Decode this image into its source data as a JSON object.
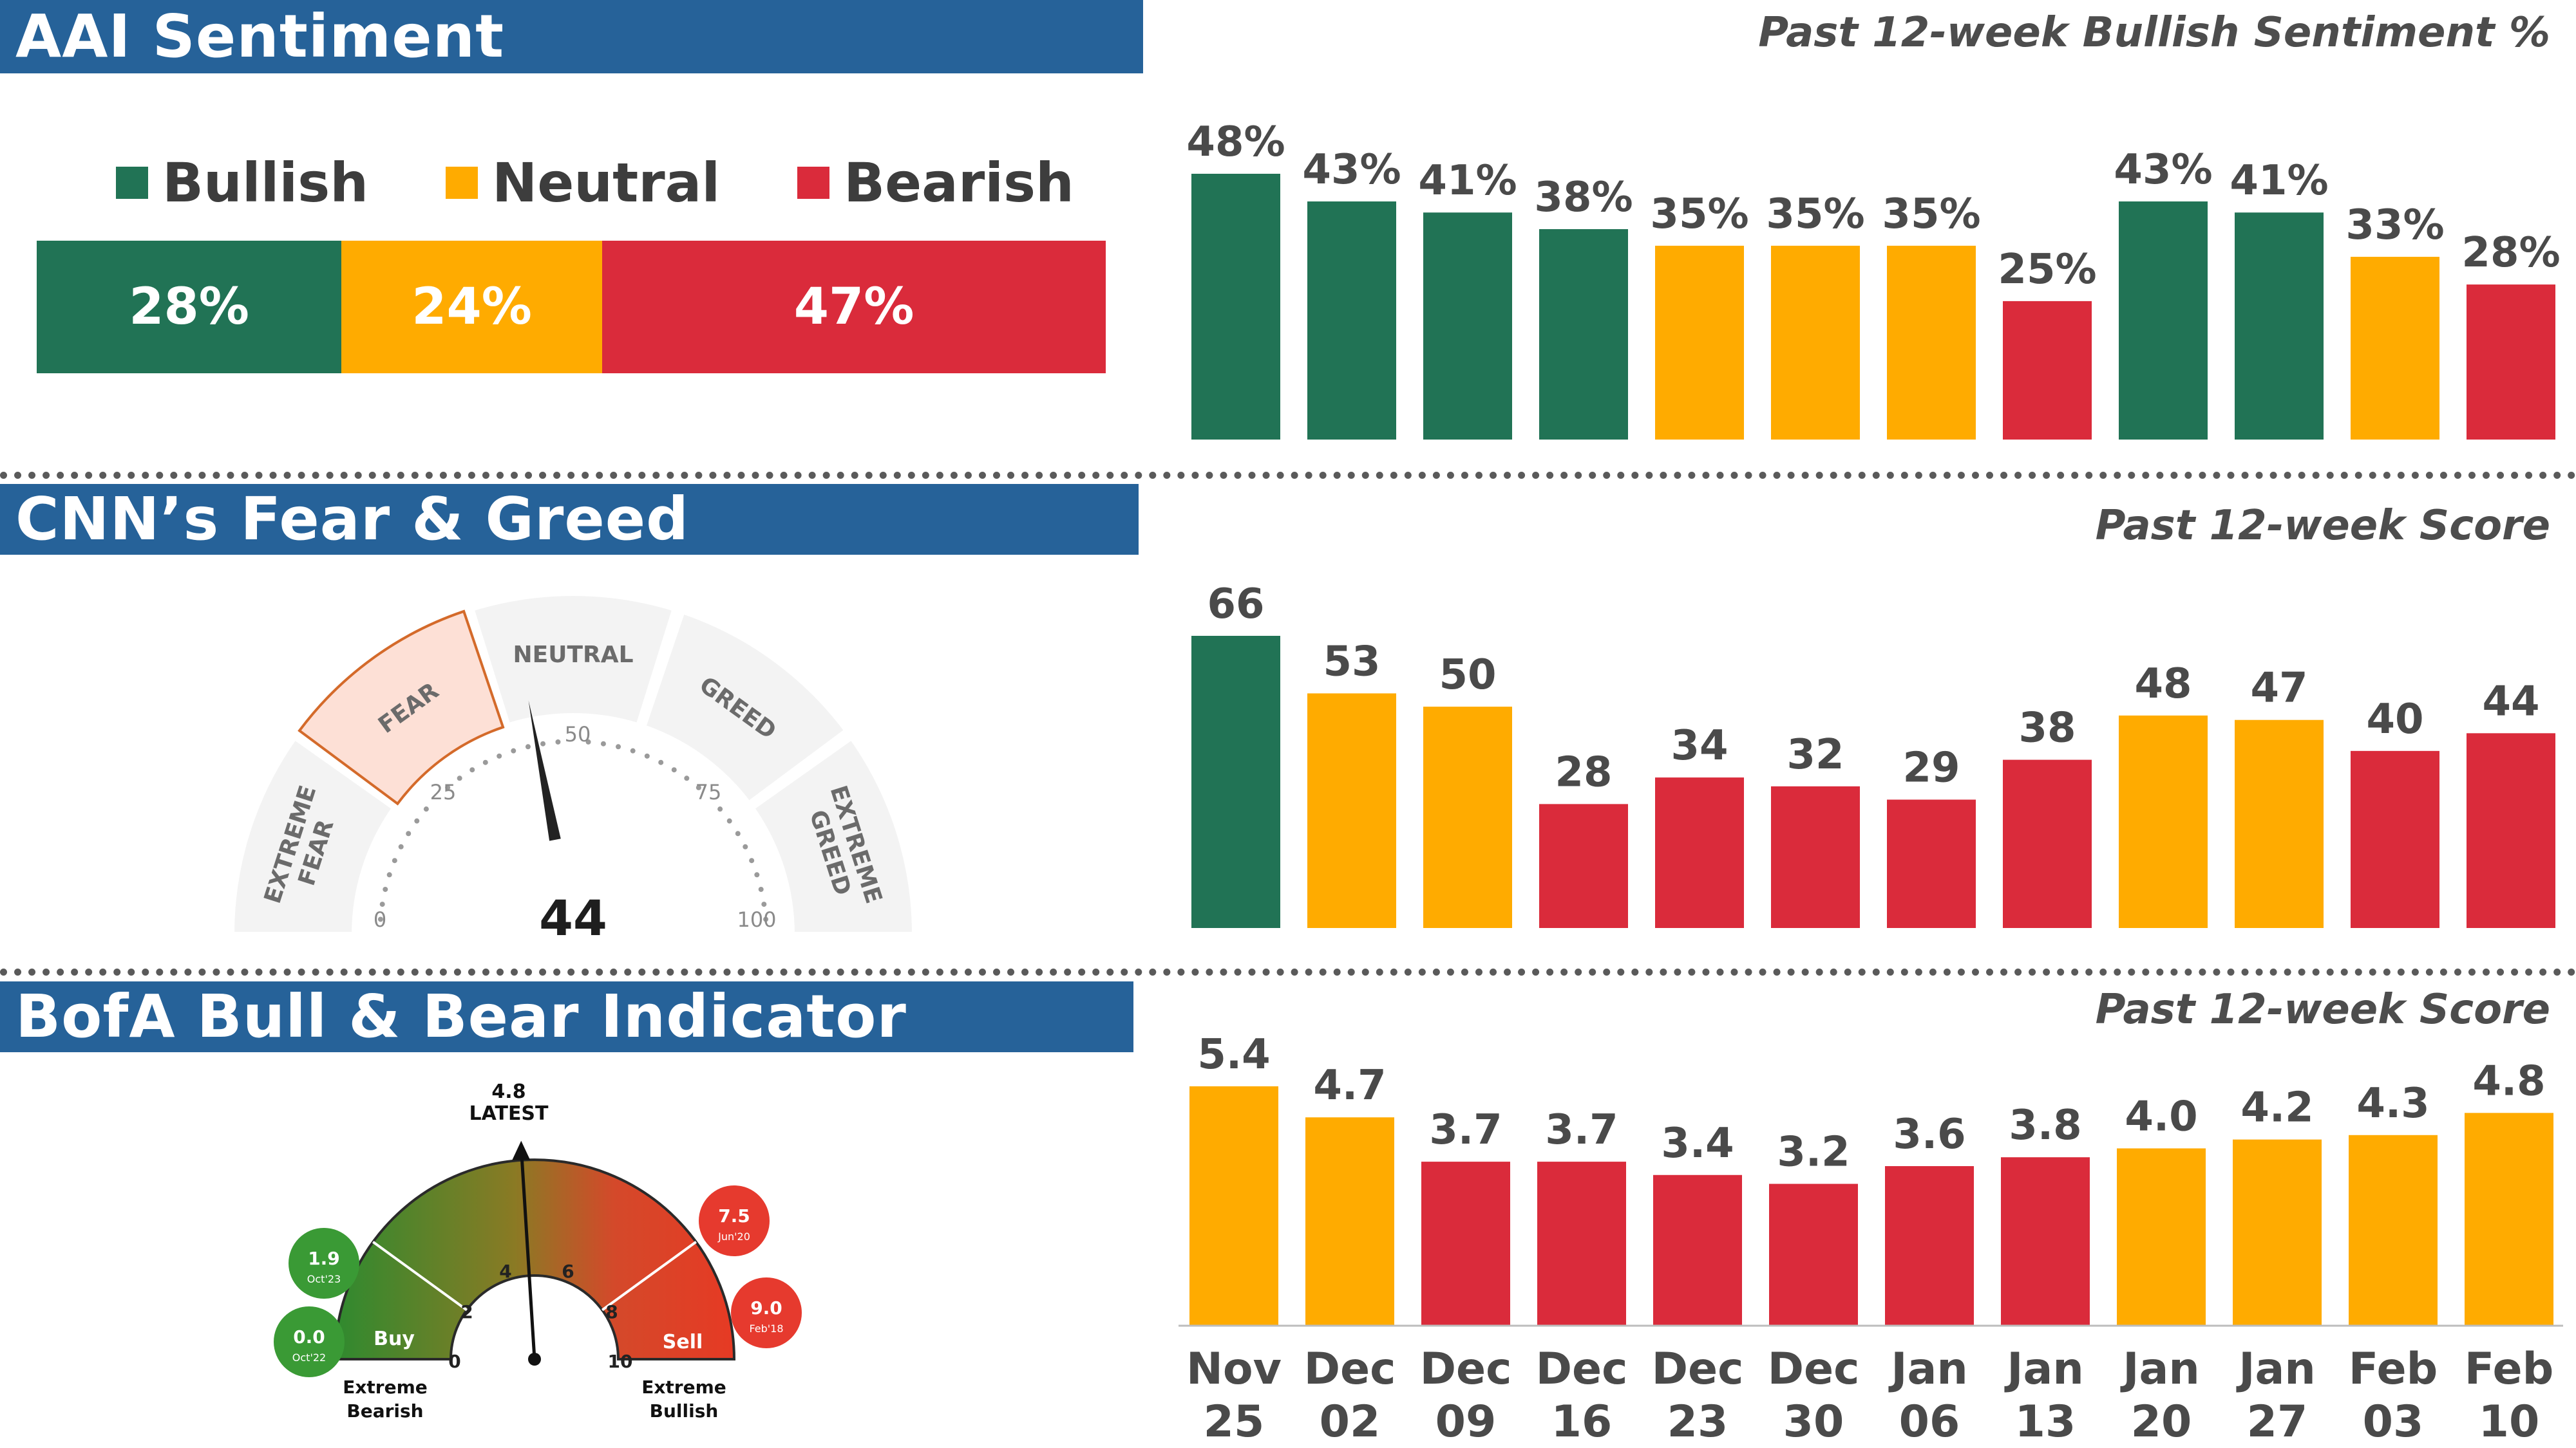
{
  "aai": {
    "title": "AAI Sentiment",
    "legend": [
      {
        "label": "Bullish",
        "color": "#217355"
      },
      {
        "label": "Neutral",
        "color": "#ffab00"
      },
      {
        "label": "Bearish",
        "color": "#da2b3b"
      }
    ],
    "breakdown": [
      {
        "label": "28%",
        "value": 28.5,
        "color": "#217355"
      },
      {
        "label": "24%",
        "value": 24.4,
        "color": "#ffab00"
      },
      {
        "label": "47%",
        "value": 47.1,
        "color": "#da2b3b"
      }
    ]
  },
  "cnn": {
    "title": "CNN’s Fear & Greed",
    "gauge": {
      "score": "44",
      "zones": [
        "EXTREME FEAR",
        "FEAR",
        "NEUTRAL",
        "GREED",
        "EXTREME GREED"
      ],
      "ticks": [
        "0",
        "25",
        "50",
        "75",
        "100"
      ],
      "active_zone": "FEAR"
    }
  },
  "bofa": {
    "title": "BofA Bull & Bear Indicator",
    "gauge": {
      "latest_value": "4.8",
      "latest_label": "LATEST",
      "ticks": [
        "0",
        "2",
        "4",
        "6",
        "8",
        "10"
      ],
      "buy_label": "Buy",
      "sell_label": "Sell",
      "left_end": [
        "Extreme",
        "Bearish"
      ],
      "right_end": [
        "Extreme",
        "Bullish"
      ],
      "bubbles": [
        {
          "value": "1.9",
          "date": "Oct'23",
          "color": "#3a9a35"
        },
        {
          "value": "0.0",
          "date": "Oct'22",
          "color": "#3a9a35"
        },
        {
          "value": "7.5",
          "date": "Jun'20",
          "color": "#e63a2e"
        },
        {
          "value": "9.0",
          "date": "Feb'18",
          "color": "#e63a2e"
        }
      ]
    }
  },
  "colors": {
    "green": "#217355",
    "orange": "#ffab00",
    "red": "#da2b3b",
    "banner": "#266299"
  },
  "chart_data": [
    {
      "type": "bar",
      "title": "Past 12-week Bullish Sentiment %",
      "categories": [
        "Nov 25",
        "Dec 02",
        "Dec 09",
        "Dec 16",
        "Dec 23",
        "Dec 30",
        "Jan 06",
        "Jan 13",
        "Jan 20",
        "Jan 27",
        "Feb 03",
        "Feb 10"
      ],
      "values": [
        48,
        43,
        41,
        38,
        35,
        35,
        35,
        25,
        43,
        41,
        33,
        28
      ],
      "labels": [
        "48%",
        "43%",
        "41%",
        "38%",
        "35%",
        "35%",
        "35%",
        "25%",
        "43%",
        "41%",
        "33%",
        "28%"
      ],
      "colors": [
        "green",
        "green",
        "green",
        "green",
        "orange",
        "orange",
        "orange",
        "red",
        "green",
        "green",
        "orange",
        "red"
      ],
      "ylim": [
        0,
        48
      ]
    },
    {
      "type": "bar",
      "title": "Past 12-week Score",
      "categories": [
        "Nov 25",
        "Dec 02",
        "Dec 09",
        "Dec 16",
        "Dec 23",
        "Dec 30",
        "Jan 06",
        "Jan 13",
        "Jan 20",
        "Jan 27",
        "Feb 03",
        "Feb 10"
      ],
      "values": [
        66,
        53,
        50,
        28,
        34,
        32,
        29,
        38,
        48,
        47,
        40,
        44
      ],
      "labels": [
        "66",
        "53",
        "50",
        "28",
        "34",
        "32",
        "29",
        "38",
        "48",
        "47",
        "40",
        "44"
      ],
      "colors": [
        "green",
        "orange",
        "orange",
        "red",
        "red",
        "red",
        "red",
        "red",
        "orange",
        "orange",
        "red",
        "red"
      ],
      "ylim": [
        0,
        66
      ]
    },
    {
      "type": "bar",
      "title": "Past 12-week Score",
      "categories": [
        "Nov 25",
        "Dec 02",
        "Dec 09",
        "Dec 16",
        "Dec 23",
        "Dec 30",
        "Jan 06",
        "Jan 13",
        "Jan 20",
        "Jan 27",
        "Feb 03",
        "Feb 10"
      ],
      "values": [
        5.4,
        4.7,
        3.7,
        3.7,
        3.4,
        3.2,
        3.6,
        3.8,
        4.0,
        4.2,
        4.3,
        4.8
      ],
      "labels": [
        "5.4",
        "4.7",
        "3.7",
        "3.7",
        "3.4",
        "3.2",
        "3.6",
        "3.8",
        "4.0",
        "4.2",
        "4.3",
        "4.8"
      ],
      "colors": [
        "orange",
        "orange",
        "red",
        "red",
        "red",
        "red",
        "red",
        "red",
        "orange",
        "orange",
        "orange",
        "orange"
      ],
      "ylim": [
        0,
        5.4
      ],
      "xlabels": [
        [
          "Nov",
          "25"
        ],
        [
          "Dec",
          "02"
        ],
        [
          "Dec",
          "09"
        ],
        [
          "Dec",
          "16"
        ],
        [
          "Dec",
          "23"
        ],
        [
          "Dec",
          "30"
        ],
        [
          "Jan",
          "06"
        ],
        [
          "Jan",
          "13"
        ],
        [
          "Jan",
          "20"
        ],
        [
          "Jan",
          "27"
        ],
        [
          "Feb",
          "03"
        ],
        [
          "Feb",
          "10"
        ]
      ]
    }
  ]
}
